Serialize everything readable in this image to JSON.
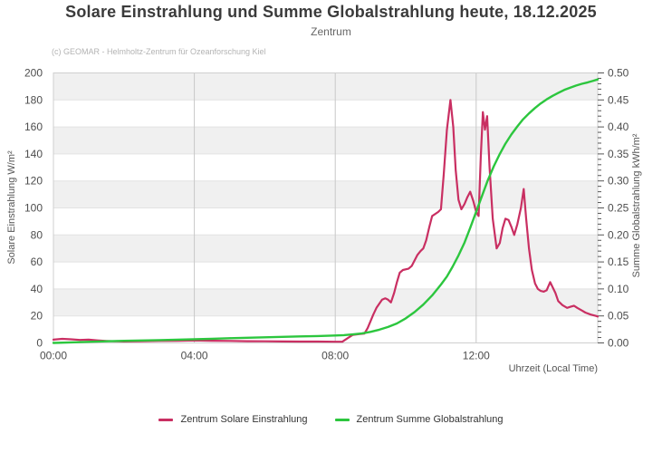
{
  "header": {
    "title": "Solare Einstrahlung und Summe Globalstrahlung heute, 18.12.2025",
    "subtitle": "Zentrum",
    "copyright": "(c) GEOMAR - Helmholtz-Zentrum für Ozeanforschung Kiel"
  },
  "chart_data": {
    "type": "line",
    "title": "Solare Einstrahlung und Summe Globalstrahlung heute, 18.12.2025",
    "subtitle": "Zentrum",
    "x_axis": {
      "label": "Uhrzeit (Local Time)",
      "unit": "hours_local_time",
      "range_hours": [
        0,
        15.45
      ],
      "ticks": [
        {
          "t": 0,
          "label": "00:00",
          "grid": false
        },
        {
          "t": 4,
          "label": "04:00",
          "grid": true
        },
        {
          "t": 8,
          "label": "08:00",
          "grid": true
        },
        {
          "t": 12,
          "label": "12:00",
          "grid": true
        }
      ]
    },
    "y_axis_left": {
      "label": "Solare Einstrahlung W/m²",
      "range": [
        0,
        200
      ],
      "tick_step": 20,
      "tick_labels": [
        "0",
        "20",
        "40",
        "60",
        "80",
        "100",
        "120",
        "140",
        "160",
        "180",
        "200"
      ]
    },
    "y_axis_right": {
      "label": "Summe Globalstrahlung kWh/m²",
      "range": [
        0,
        0.5
      ],
      "tick_step": 0.05,
      "minor_tick_step": 0.01,
      "tick_labels": [
        "0.00",
        "0.05",
        "0.10",
        "0.15",
        "0.20",
        "0.25",
        "0.30",
        "0.35",
        "0.40",
        "0.45",
        "0.50"
      ]
    },
    "series": [
      {
        "name": "Zentrum Solare Einstrahlung",
        "color": "#c92f62",
        "axis": "left",
        "unit": "W/m²",
        "points": [
          [
            0,
            2.4
          ],
          [
            0.25,
            3
          ],
          [
            0.5,
            2.7
          ],
          [
            0.75,
            2.2
          ],
          [
            1,
            2.4
          ],
          [
            1.25,
            1.9
          ],
          [
            1.5,
            1.5
          ],
          [
            1.75,
            1.2
          ],
          [
            2,
            1.1
          ],
          [
            2.5,
            1.3
          ],
          [
            3,
            1.5
          ],
          [
            3.5,
            1.6
          ],
          [
            4,
            1.8
          ],
          [
            4.5,
            1.6
          ],
          [
            5,
            1.5
          ],
          [
            5.5,
            1.3
          ],
          [
            6,
            1.2
          ],
          [
            6.5,
            1.1
          ],
          [
            7,
            1
          ],
          [
            7.5,
            1
          ],
          [
            8,
            0.9
          ],
          [
            8.2,
            0.9
          ],
          [
            8.35,
            3.5
          ],
          [
            8.5,
            6
          ],
          [
            8.67,
            6.5
          ],
          [
            8.83,
            7
          ],
          [
            8.92,
            11
          ],
          [
            9,
            16
          ],
          [
            9.08,
            21
          ],
          [
            9.17,
            26
          ],
          [
            9.33,
            32
          ],
          [
            9.42,
            33
          ],
          [
            9.5,
            32
          ],
          [
            9.58,
            30
          ],
          [
            9.67,
            37
          ],
          [
            9.75,
            45
          ],
          [
            9.83,
            52
          ],
          [
            9.92,
            54
          ],
          [
            10.08,
            55
          ],
          [
            10.17,
            57
          ],
          [
            10.33,
            65
          ],
          [
            10.42,
            68
          ],
          [
            10.5,
            70
          ],
          [
            10.58,
            76
          ],
          [
            10.67,
            86
          ],
          [
            10.75,
            94
          ],
          [
            10.92,
            97
          ],
          [
            11,
            99
          ],
          [
            11.08,
            125
          ],
          [
            11.17,
            158
          ],
          [
            11.27,
            180
          ],
          [
            11.35,
            160
          ],
          [
            11.42,
            128
          ],
          [
            11.5,
            106
          ],
          [
            11.58,
            99
          ],
          [
            11.67,
            103
          ],
          [
            11.75,
            108
          ],
          [
            11.83,
            112
          ],
          [
            11.92,
            105
          ],
          [
            12,
            97
          ],
          [
            12.07,
            94
          ],
          [
            12.13,
            138
          ],
          [
            12.19,
            171
          ],
          [
            12.25,
            158
          ],
          [
            12.31,
            168
          ],
          [
            12.38,
            130
          ],
          [
            12.47,
            92
          ],
          [
            12.58,
            70
          ],
          [
            12.67,
            74
          ],
          [
            12.75,
            85
          ],
          [
            12.83,
            92
          ],
          [
            12.92,
            91
          ],
          [
            13,
            86
          ],
          [
            13.08,
            80
          ],
          [
            13.17,
            88
          ],
          [
            13.27,
            100
          ],
          [
            13.35,
            114
          ],
          [
            13.42,
            92
          ],
          [
            13.5,
            70
          ],
          [
            13.58,
            54
          ],
          [
            13.67,
            44
          ],
          [
            13.75,
            40
          ],
          [
            13.83,
            38.5
          ],
          [
            13.92,
            38
          ],
          [
            14,
            39
          ],
          [
            14.1,
            45
          ],
          [
            14.25,
            37
          ],
          [
            14.33,
            31
          ],
          [
            14.45,
            28
          ],
          [
            14.58,
            26
          ],
          [
            14.7,
            27
          ],
          [
            14.78,
            27.5
          ],
          [
            14.87,
            26
          ],
          [
            15,
            24
          ],
          [
            15.1,
            22.5
          ],
          [
            15.25,
            21
          ],
          [
            15.4,
            20
          ],
          [
            15.45,
            19.5
          ]
        ]
      },
      {
        "name": "Zentrum Summe Globalstrahlung",
        "color": "#2cc63e",
        "axis": "right",
        "unit": "kWh/m²",
        "points": [
          [
            0,
            0
          ],
          [
            0.5,
            0.001
          ],
          [
            1,
            0.002
          ],
          [
            1.5,
            0.003
          ],
          [
            2,
            0.0038
          ],
          [
            2.5,
            0.0045
          ],
          [
            3,
            0.0052
          ],
          [
            3.5,
            0.006
          ],
          [
            4,
            0.0068
          ],
          [
            4.5,
            0.0078
          ],
          [
            5,
            0.0088
          ],
          [
            5.5,
            0.0096
          ],
          [
            6,
            0.0104
          ],
          [
            6.5,
            0.0112
          ],
          [
            7,
            0.012
          ],
          [
            7.5,
            0.0128
          ],
          [
            8,
            0.0138
          ],
          [
            8.25,
            0.0145
          ],
          [
            8.5,
            0.0158
          ],
          [
            8.75,
            0.0175
          ],
          [
            9,
            0.0205
          ],
          [
            9.25,
            0.0245
          ],
          [
            9.5,
            0.0295
          ],
          [
            9.75,
            0.036
          ],
          [
            10,
            0.0455
          ],
          [
            10.25,
            0.057
          ],
          [
            10.5,
            0.071
          ],
          [
            10.75,
            0.088
          ],
          [
            11,
            0.108
          ],
          [
            11.17,
            0.123
          ],
          [
            11.33,
            0.141
          ],
          [
            11.5,
            0.162
          ],
          [
            11.67,
            0.186
          ],
          [
            11.83,
            0.213
          ],
          [
            12,
            0.243
          ],
          [
            12.17,
            0.273
          ],
          [
            12.33,
            0.301
          ],
          [
            12.5,
            0.327
          ],
          [
            12.67,
            0.35
          ],
          [
            12.83,
            0.369
          ],
          [
            13,
            0.386
          ],
          [
            13.17,
            0.401
          ],
          [
            13.33,
            0.414
          ],
          [
            13.5,
            0.425
          ],
          [
            13.67,
            0.435
          ],
          [
            13.83,
            0.4435
          ],
          [
            14,
            0.451
          ],
          [
            14.17,
            0.4575
          ],
          [
            14.33,
            0.463
          ],
          [
            14.5,
            0.4685
          ],
          [
            14.67,
            0.4728
          ],
          [
            14.83,
            0.4765
          ],
          [
            15,
            0.4798
          ],
          [
            15.17,
            0.4825
          ],
          [
            15.33,
            0.4855
          ],
          [
            15.45,
            0.488
          ]
        ]
      }
    ],
    "layout_hints": {
      "grid": "horizontal banded stripes + vertical hour lines",
      "legend_position": "bottom-center",
      "band_fill": "#f0f0f0",
      "band_line": "#e2e2e2",
      "vgrid_color": "#c8c8c8",
      "axis_border_color": "#cfcfcf",
      "tick_color": "#555555",
      "tick_label_color": "#4d4d4d"
    }
  }
}
